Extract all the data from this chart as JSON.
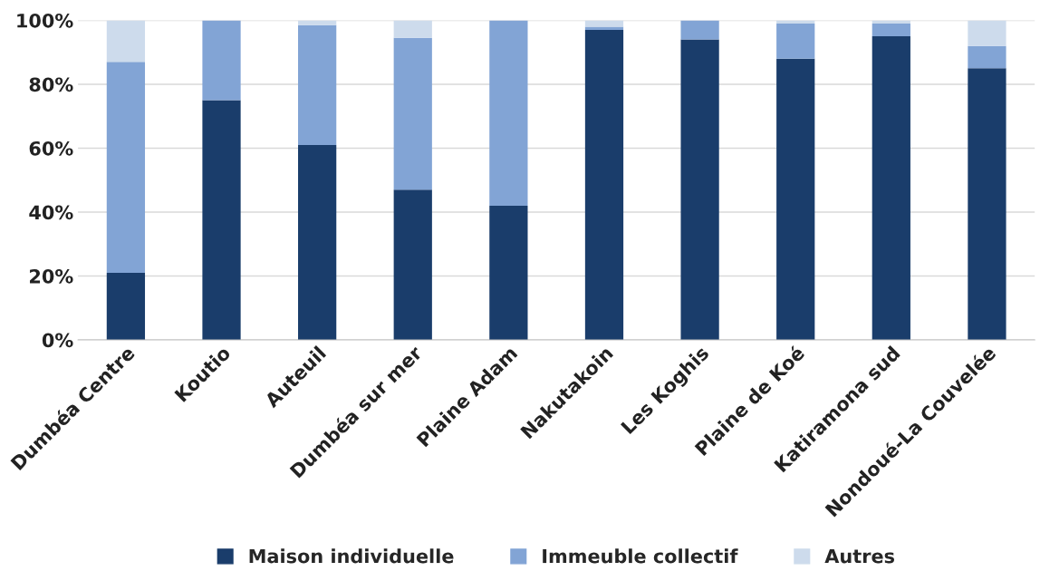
{
  "chart_data": {
    "type": "bar",
    "stacked": true,
    "categories": [
      "Dumbéa Centre",
      "Koutio",
      "Auteuil",
      "Dumbéa sur mer",
      "Plaine Adam",
      "Nakutakoin",
      "Les Koghis",
      "Plaine de Koé",
      "Katiramona sud",
      "Nondoué-La Couvelée"
    ],
    "series": [
      {
        "name": "Maison individuelle",
        "color": "#1a3d6b",
        "values": [
          21,
          75,
          61,
          47,
          42,
          97,
          94,
          88,
          95,
          85
        ]
      },
      {
        "name": "Immeuble collectif",
        "color": "#82a4d5",
        "values": [
          66,
          25,
          37.5,
          47.5,
          58,
          1,
          6,
          11,
          4,
          7
        ]
      },
      {
        "name": "Autres",
        "color": "#cddbec",
        "values": [
          13,
          null,
          1.5,
          5.5,
          null,
          2,
          null,
          1,
          1,
          8
        ]
      }
    ],
    "ylim": [
      0,
      100
    ],
    "yticks": [
      {
        "value": 0,
        "label": "0%"
      },
      {
        "value": 20,
        "label": "20%"
      },
      {
        "value": 40,
        "label": "40%"
      },
      {
        "value": 60,
        "label": "60%"
      },
      {
        "value": 80,
        "label": "80%"
      },
      {
        "value": 100,
        "label": "100%"
      }
    ],
    "grid": "y",
    "legend": "bottom"
  }
}
